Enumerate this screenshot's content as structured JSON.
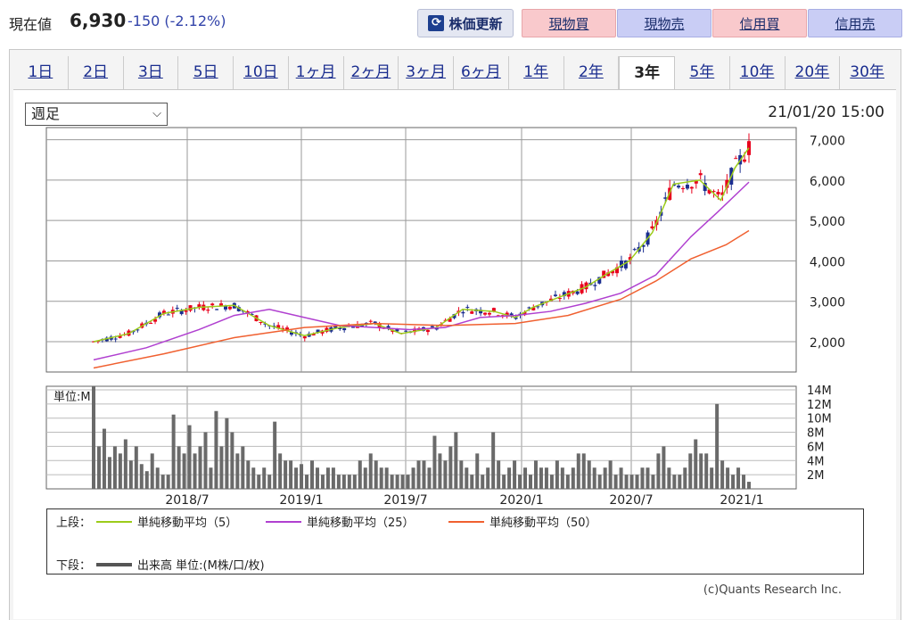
{
  "header": {
    "price_label": "現在値",
    "price_value": "6,930",
    "price_change": "-150 (-2.12%)",
    "refresh_label": "株価更新",
    "buttons": [
      "現物買",
      "現物売",
      "信用買",
      "信用売"
    ]
  },
  "tabs": [
    "1日",
    "2日",
    "3日",
    "5日",
    "10日",
    "1ヶ月",
    "2ヶ月",
    "3ヶ月",
    "6ヶ月",
    "1年",
    "2年",
    "3年",
    "5年",
    "10年",
    "20年",
    "30年"
  ],
  "active_tab": "3年",
  "period_select": "週足",
  "timestamp": "21/01/20 15:00",
  "legend": {
    "upper_label": "上段：",
    "lower_label": "下段：",
    "ma5": "単純移動平均（5）",
    "ma25": "単純移動平均（25）",
    "ma50": "単純移動平均（50）",
    "volume": "出来高 単位:(M株/口/枚)"
  },
  "copyright": "(c)Quants Research Inc.",
  "colors": {
    "up": "#e8001c",
    "down": "#1a2d8f",
    "ma5": "#9ccc1a",
    "ma25": "#b040d0",
    "ma50": "#f06030",
    "volume": "#6a6a6a"
  },
  "chart_data": [
    {
      "type": "line",
      "title": "",
      "y_ticks": [
        "7,000",
        "6,000",
        "5,000",
        "4,000",
        "3,000",
        "2,000"
      ],
      "ylim": [
        1250,
        7300
      ],
      "series": [
        {
          "name": "単純移動平均（5）",
          "x": [
            0,
            20,
            40,
            60,
            80,
            100,
            120,
            140,
            160,
            175,
            195,
            210,
            228,
            240,
            250,
            262,
            268,
            280,
            293,
            305,
            318,
            325,
            330,
            345,
            357,
            365,
            373
          ],
          "y": [
            2000,
            2200,
            2700,
            2850,
            2900,
            2400,
            2150,
            2350,
            2450,
            2200,
            2350,
            2800,
            2750,
            2600,
            2850,
            3050,
            3150,
            3350,
            3700,
            4000,
            4700,
            5400,
            5900,
            6000,
            5500,
            6300,
            6800
          ]
        },
        {
          "name": "単純移動平均（25）",
          "x": [
            0,
            30,
            60,
            80,
            100,
            120,
            140,
            160,
            180,
            200,
            220,
            240,
            260,
            280,
            300,
            320,
            340,
            355,
            373
          ],
          "y": [
            1550,
            1850,
            2300,
            2650,
            2800,
            2600,
            2400,
            2350,
            2300,
            2350,
            2600,
            2650,
            2750,
            2950,
            3200,
            3650,
            4600,
            5200,
            5950
          ]
        },
        {
          "name": "単純移動平均（50）",
          "x": [
            0,
            40,
            80,
            120,
            160,
            200,
            240,
            270,
            300,
            320,
            340,
            360,
            373
          ],
          "y": [
            1350,
            1700,
            2100,
            2350,
            2450,
            2400,
            2450,
            2650,
            3050,
            3500,
            4050,
            4400,
            4750
          ]
        }
      ]
    },
    {
      "type": "bar",
      "title": "単位:M",
      "y_ticks": [
        "14M",
        "12M",
        "10M",
        "8M",
        "6M",
        "4M",
        "2M"
      ],
      "ylim": [
        0,
        14.5
      ],
      "x_ticks": [
        "2018/7",
        "2019/1",
        "2019/7",
        "2020/1",
        "2020/7",
        "2021/1"
      ],
      "values": [
        14.5,
        6,
        8.5,
        4.5,
        6,
        5,
        7,
        4,
        6,
        3.5,
        2.5,
        5,
        3,
        2,
        2,
        10.5,
        6,
        5,
        9,
        5,
        6,
        8,
        3,
        11,
        6,
        10,
        8,
        5,
        6,
        4,
        3,
        2,
        3,
        2,
        9.5,
        5,
        4,
        4,
        3,
        3.5,
        2,
        4,
        3,
        2,
        3,
        3,
        2,
        2,
        2,
        2,
        4,
        3,
        5,
        4,
        3,
        3,
        2,
        2,
        2,
        2,
        3,
        4,
        4,
        3,
        7.5,
        5,
        4,
        6,
        8,
        4,
        3,
        2,
        5,
        2,
        3,
        8,
        4,
        2,
        3,
        4,
        2,
        3,
        2,
        4,
        3,
        3,
        2,
        4,
        3,
        2,
        3,
        5,
        5,
        4,
        3,
        2,
        3,
        4,
        2,
        3,
        2,
        2,
        2,
        3,
        3,
        2,
        5,
        6,
        3,
        2,
        2,
        3,
        5,
        7,
        5,
        5,
        3,
        12,
        4,
        3,
        2,
        3,
        2,
        1
      ]
    }
  ]
}
